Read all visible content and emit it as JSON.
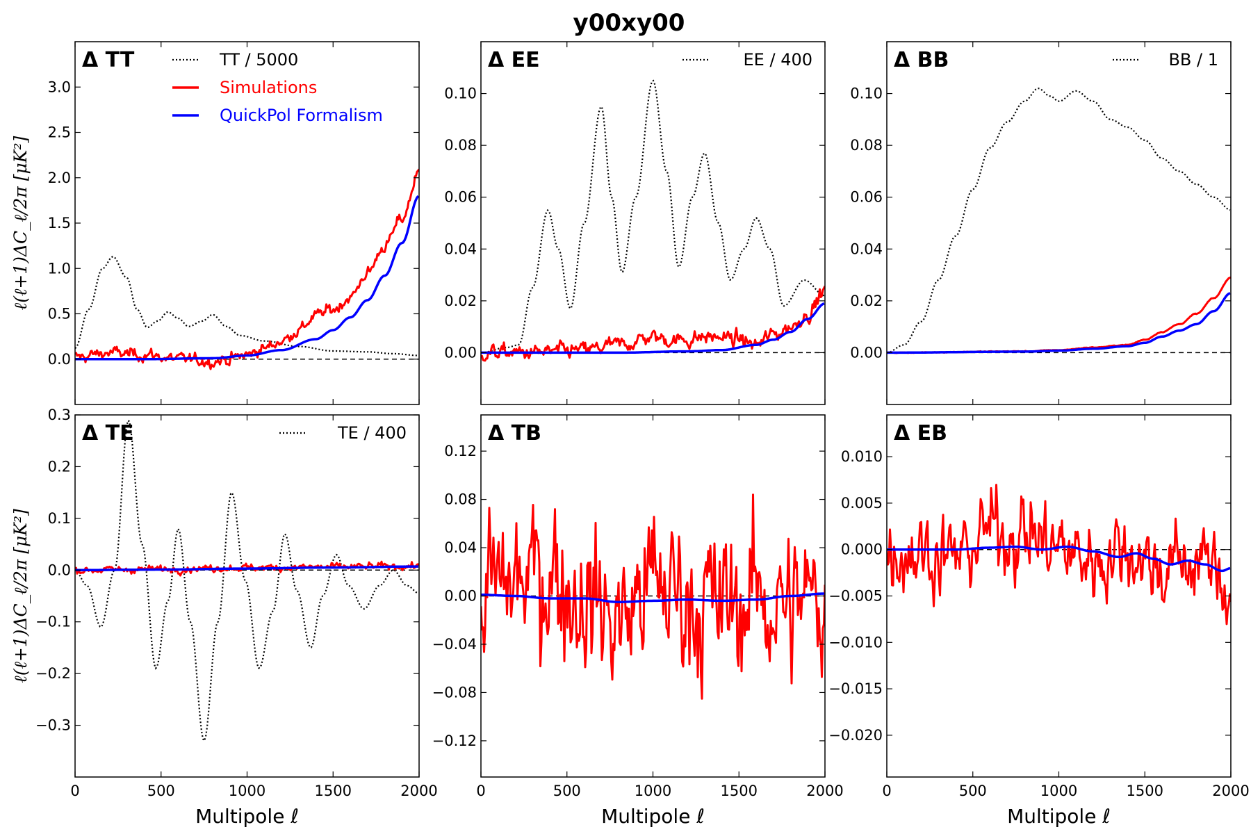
{
  "figure_title": "y00xy00",
  "chart_data": [
    {
      "type": "line",
      "title": "Δ TT",
      "xlabel": "",
      "ylabel": "ℓ(ℓ+1)ΔC_ℓ/2π   [μK²]",
      "xlim": [
        0,
        2000
      ],
      "ylim": [
        -0.5,
        3.5
      ],
      "yticks": [
        0.0,
        0.5,
        1.0,
        1.5,
        2.0,
        2.5,
        3.0
      ],
      "ytick_labels": [
        "0.0",
        "0.5",
        "1.0",
        "1.5",
        "2.0",
        "2.5",
        "3.0"
      ],
      "xticks": [],
      "xtick_labels": [],
      "legend": [
        "TT / 5000",
        "Simulations",
        "QuickPol Formalism"
      ],
      "series": [
        {
          "name": "TT / 5000",
          "style": "dotted",
          "color": "#000000",
          "x": [
            0,
            80,
            160,
            220,
            300,
            360,
            420,
            480,
            540,
            600,
            660,
            740,
            800,
            880,
            960,
            1100,
            1300,
            1500,
            1700,
            1850,
            2000
          ],
          "y": [
            0.12,
            0.55,
            1.0,
            1.13,
            0.9,
            0.55,
            0.35,
            0.42,
            0.52,
            0.45,
            0.36,
            0.42,
            0.49,
            0.36,
            0.26,
            0.2,
            0.14,
            0.09,
            0.08,
            0.06,
            0.04
          ]
        },
        {
          "name": "Simulations",
          "style": "solid",
          "color": "#ff0000",
          "noise": 0.09,
          "x": [
            0,
            200,
            400,
            600,
            800,
            900,
            1000,
            1100,
            1200,
            1300,
            1400,
            1500,
            1600,
            1700,
            1800,
            1900,
            2000
          ],
          "y": [
            0.02,
            0.07,
            0.05,
            0.0,
            -0.02,
            0.0,
            0.05,
            0.12,
            0.2,
            0.32,
            0.48,
            0.55,
            0.68,
            0.95,
            1.25,
            1.55,
            2.05
          ]
        },
        {
          "name": "QuickPol Formalism",
          "style": "solid",
          "color": "#0000ff",
          "x": [
            0,
            400,
            800,
            1000,
            1200,
            1400,
            1500,
            1600,
            1700,
            1800,
            1900,
            2000
          ],
          "y": [
            0.0,
            0.0,
            0.01,
            0.04,
            0.1,
            0.22,
            0.32,
            0.46,
            0.65,
            0.92,
            1.28,
            1.8
          ]
        }
      ]
    },
    {
      "type": "line",
      "title": "Δ EE",
      "xlabel": "",
      "ylabel": "",
      "xlim": [
        0,
        2000
      ],
      "ylim": [
        -0.02,
        0.12
      ],
      "yticks": [
        0.0,
        0.02,
        0.04,
        0.06,
        0.08,
        0.1
      ],
      "ytick_labels": [
        "0.00",
        "0.02",
        "0.04",
        "0.06",
        "0.08",
        "0.10"
      ],
      "xticks": [],
      "xtick_labels": [],
      "legend": [
        "EE / 400"
      ],
      "series": [
        {
          "name": "EE / 400",
          "style": "dotted",
          "color": "#000000",
          "x": [
            0,
            150,
            220,
            300,
            390,
            450,
            520,
            600,
            700,
            760,
            820,
            900,
            1000,
            1080,
            1150,
            1230,
            1300,
            1380,
            1450,
            1530,
            1600,
            1680,
            1760,
            1880,
            2000
          ],
          "y": [
            0.0,
            0.002,
            0.003,
            0.025,
            0.055,
            0.04,
            0.017,
            0.05,
            0.095,
            0.06,
            0.031,
            0.06,
            0.105,
            0.07,
            0.033,
            0.06,
            0.077,
            0.05,
            0.028,
            0.04,
            0.052,
            0.04,
            0.018,
            0.028,
            0.022
          ]
        },
        {
          "name": "Simulations",
          "style": "solid",
          "color": "#ff0000",
          "noise": 0.004,
          "x": [
            0,
            300,
            600,
            800,
            1000,
            1100,
            1200,
            1300,
            1400,
            1500,
            1600,
            1700,
            1800,
            1900,
            2000
          ],
          "y": [
            0.0,
            0.0,
            0.001,
            0.003,
            0.006,
            0.005,
            0.005,
            0.006,
            0.006,
            0.005,
            0.003,
            0.007,
            0.01,
            0.015,
            0.024
          ]
        },
        {
          "name": "QuickPol Formalism",
          "style": "solid",
          "color": "#0000ff",
          "x": [
            0,
            800,
            1200,
            1400,
            1600,
            1700,
            1800,
            1900,
            2000
          ],
          "y": [
            0.0,
            0.0,
            0.0005,
            0.001,
            0.003,
            0.005,
            0.008,
            0.013,
            0.019
          ]
        }
      ]
    },
    {
      "type": "line",
      "title": "Δ BB",
      "xlabel": "",
      "ylabel": "",
      "xlim": [
        0,
        2000
      ],
      "ylim": [
        -0.02,
        0.12
      ],
      "yticks": [
        0.0,
        0.02,
        0.04,
        0.06,
        0.08,
        0.1
      ],
      "ytick_labels": [
        "0.00",
        "0.02",
        "0.04",
        "0.06",
        "0.08",
        "0.10"
      ],
      "xticks": [],
      "xtick_labels": [],
      "legend": [
        "BB / 1"
      ],
      "series": [
        {
          "name": "BB / 1",
          "style": "dotted",
          "color": "#000000",
          "x": [
            0,
            100,
            200,
            300,
            400,
            500,
            600,
            700,
            800,
            880,
            950,
            1000,
            1100,
            1200,
            1300,
            1400,
            1500,
            1600,
            1700,
            1800,
            1900,
            2000
          ],
          "y": [
            0.0,
            0.003,
            0.012,
            0.028,
            0.045,
            0.063,
            0.079,
            0.089,
            0.097,
            0.102,
            0.099,
            0.097,
            0.101,
            0.097,
            0.09,
            0.087,
            0.082,
            0.075,
            0.07,
            0.065,
            0.06,
            0.055
          ]
        },
        {
          "name": "Simulations",
          "style": "solid",
          "color": "#ff0000",
          "noise": 0.0002,
          "x": [
            0,
            800,
            1000,
            1200,
            1400,
            1500,
            1600,
            1700,
            1800,
            1900,
            2000
          ],
          "y": [
            0.0,
            0.0005,
            0.001,
            0.002,
            0.003,
            0.005,
            0.008,
            0.011,
            0.015,
            0.021,
            0.029
          ]
        },
        {
          "name": "QuickPol Formalism",
          "style": "solid",
          "color": "#0000ff",
          "x": [
            0,
            800,
            1000,
            1200,
            1400,
            1500,
            1600,
            1700,
            1800,
            1900,
            2000
          ],
          "y": [
            0.0,
            0.0004,
            0.0008,
            0.0015,
            0.0025,
            0.0038,
            0.0062,
            0.0085,
            0.011,
            0.016,
            0.023
          ]
        }
      ]
    },
    {
      "type": "line",
      "title": "Δ TE",
      "xlabel": "Multipole ℓ",
      "ylabel": "ℓ(ℓ+1)ΔC_ℓ/2π   [μK²]",
      "xlim": [
        0,
        2000
      ],
      "ylim": [
        -0.4,
        0.3
      ],
      "yticks": [
        -0.3,
        -0.2,
        -0.1,
        0.0,
        0.1,
        0.2,
        0.3
      ],
      "ytick_labels": [
        "−0.3",
        "−0.2",
        "−0.1",
        "0.0",
        "0.1",
        "0.2",
        "0.3"
      ],
      "xticks": [
        0,
        500,
        1000,
        1500,
        2000
      ],
      "xtick_labels": [
        "0",
        "500",
        "1000",
        "1500",
        "2000"
      ],
      "legend": [
        "TE / 400"
      ],
      "series": [
        {
          "name": "TE / 400",
          "style": "dotted",
          "color": "#000000",
          "x": [
            0,
            70,
            150,
            230,
            310,
            390,
            470,
            540,
            600,
            670,
            750,
            830,
            910,
            990,
            1070,
            1150,
            1220,
            1290,
            1370,
            1440,
            1520,
            1590,
            1680,
            1770,
            1850,
            1930,
            2000
          ],
          "y": [
            0.0,
            -0.03,
            -0.11,
            0.0,
            0.29,
            0.05,
            -0.19,
            -0.06,
            0.08,
            -0.1,
            -0.33,
            -0.1,
            0.15,
            -0.02,
            -0.19,
            -0.08,
            0.07,
            -0.04,
            -0.15,
            -0.05,
            0.03,
            -0.03,
            -0.075,
            -0.03,
            0.0,
            -0.03,
            -0.045
          ]
        },
        {
          "name": "Simulations",
          "style": "solid",
          "color": "#ff0000",
          "noise": 0.009,
          "x": [
            0,
            500,
            1000,
            1500,
            2000
          ],
          "y": [
            0.0,
            0.002,
            0.005,
            0.006,
            0.008
          ]
        },
        {
          "name": "QuickPol Formalism",
          "style": "solid",
          "color": "#0000ff",
          "x": [
            0,
            500,
            1000,
            1500,
            2000
          ],
          "y": [
            0.0,
            0.001,
            0.003,
            0.005,
            0.007
          ]
        }
      ]
    },
    {
      "type": "line",
      "title": "Δ TB",
      "xlabel": "Multipole ℓ",
      "ylabel": "",
      "xlim": [
        0,
        2000
      ],
      "ylim": [
        -0.15,
        0.15
      ],
      "yticks": [
        -0.12,
        -0.08,
        -0.04,
        0.0,
        0.04,
        0.08,
        0.12
      ],
      "ytick_labels": [
        "−0.12",
        "−0.08",
        "−0.04",
        "0.00",
        "0.04",
        "0.08",
        "0.12"
      ],
      "xticks": [
        0,
        500,
        1000,
        1500,
        2000
      ],
      "xtick_labels": [
        "0",
        "500",
        "1000",
        "1500",
        "2000"
      ],
      "legend": [],
      "series": [
        {
          "name": "Simulations",
          "style": "solid",
          "color": "#ff0000",
          "noise": 0.085,
          "x": [
            0,
            200,
            400,
            600,
            800,
            1000,
            1200,
            1400,
            1600,
            1800,
            2000
          ],
          "y": [
            0.0,
            0.01,
            0.02,
            0.0,
            -0.02,
            0.01,
            0.0,
            -0.01,
            0.0,
            -0.01,
            0.0
          ]
        },
        {
          "name": "QuickPol Formalism",
          "style": "solid",
          "color": "#0000ff",
          "x": [
            0,
            200,
            400,
            600,
            800,
            1000,
            1200,
            1400,
            1600,
            1800,
            2000
          ],
          "y": [
            0.001,
            0.0,
            -0.002,
            -0.002,
            -0.005,
            -0.004,
            -0.003,
            -0.004,
            -0.003,
            0.0,
            0.002
          ]
        }
      ]
    },
    {
      "type": "line",
      "title": "Δ EB",
      "xlabel": "Multipole ℓ",
      "ylabel": "",
      "xlim": [
        0,
        2000
      ],
      "ylim": [
        -0.0245,
        0.0145
      ],
      "yticks": [
        -0.02,
        -0.015,
        -0.01,
        -0.005,
        0.0,
        0.005,
        0.01
      ],
      "ytick_labels": [
        "−0.020",
        "−0.015",
        "−0.010",
        "−0.005",
        "0.000",
        "0.005",
        "0.010"
      ],
      "xticks": [
        0,
        500,
        1000,
        1500,
        2000
      ],
      "xtick_labels": [
        "0",
        "500",
        "1000",
        "1500",
        "2000"
      ],
      "legend": [],
      "series": [
        {
          "name": "Simulations",
          "style": "solid",
          "color": "#ff0000",
          "noise": 0.006,
          "x": [
            0,
            200,
            400,
            600,
            800,
            1000,
            1200,
            1400,
            1600,
            1800,
            2000
          ],
          "y": [
            0.0,
            0.0,
            -0.001,
            0.002,
            0.002,
            0.0,
            -0.001,
            0.0,
            -0.002,
            -0.001,
            -0.004
          ]
        },
        {
          "name": "QuickPol Formalism",
          "style": "solid",
          "color": "#0000ff",
          "x": [
            0,
            200,
            400,
            600,
            750,
            900,
            1050,
            1200,
            1350,
            1450,
            1550,
            1650,
            1750,
            1850,
            1950,
            2000
          ],
          "y": [
            0.0,
            0.0,
            0.0,
            0.0002,
            0.0003,
            0.0,
            0.0003,
            -0.0002,
            -0.0008,
            -0.0004,
            -0.001,
            -0.0016,
            -0.0012,
            -0.0016,
            -0.0023,
            -0.002
          ]
        }
      ]
    }
  ]
}
